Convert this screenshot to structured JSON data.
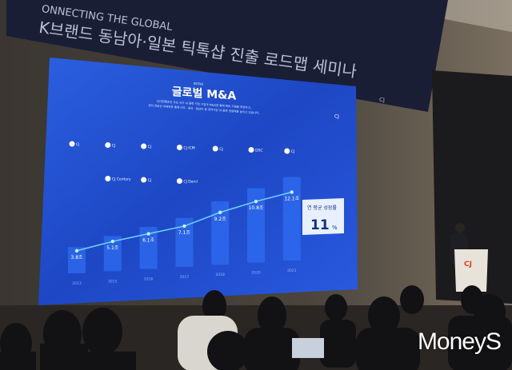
{
  "banner": {
    "subtitle": "ONNECTING THE GLOBAL",
    "title": "K브랜드 동남아·일본 틱톡샵 진출 로드맵 세미나",
    "logo": "CJ"
  },
  "slide": {
    "intro": "INTRO",
    "title": "글로벌 M&A",
    "description": [
      "CJ대한통운은 주요 국가 내 물류 리딩 기업과 M&A를 통해 해외 거점을 확장하고,",
      "현지 전문성 내재화를 통해 미주 · 중국 · 동남아 등 권역시장 내 물류 경쟁력을 높이고 있습니다."
    ],
    "logo": "CJ",
    "acquisitions": [
      "CJ",
      "CJ",
      "CJ",
      "CJ ICM",
      "CJ",
      "DSC",
      "CJ",
      "CJ Century",
      "CJ",
      "CJ Darcl"
    ],
    "callout": {
      "label": "연 평균 성장률",
      "value": "11",
      "unit": "%"
    }
  },
  "chart_data": {
    "type": "bar",
    "categories": [
      "2013",
      "2015",
      "2016",
      "2017",
      "2018",
      "2020",
      "2021"
    ],
    "values": [
      3.8,
      5.1,
      6.1,
      7.1,
      9.2,
      10.8,
      12.1
    ],
    "labels": [
      "3.8조",
      "5.1조",
      "6.1조",
      "7.1조",
      "9.2조",
      "10.8조",
      "12.1조"
    ],
    "overlay": "line",
    "colors": {
      "bar": "#2f6cf0",
      "line": "#6fd3ff",
      "background": "#1b46c8"
    }
  },
  "podium": {
    "logo": "CJ"
  },
  "watermark": "MoneyS"
}
